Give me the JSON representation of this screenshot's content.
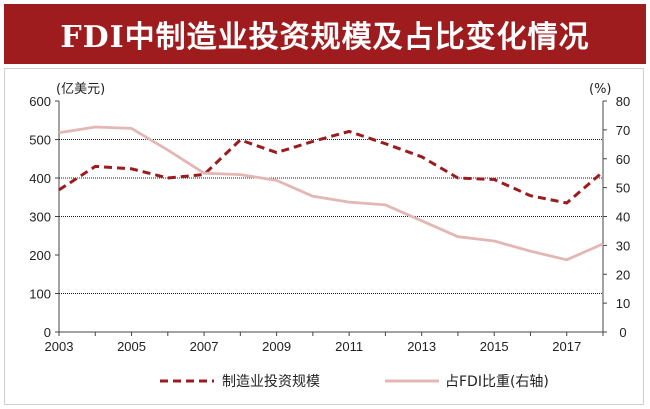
{
  "title": "FDI中制造业投资规模及占比变化情况",
  "chart_data": {
    "type": "line",
    "x": [
      2003,
      2004,
      2005,
      2006,
      2007,
      2008,
      2009,
      2010,
      2011,
      2012,
      2013,
      2014,
      2015,
      2016,
      2017,
      2018
    ],
    "xticks": [
      "2003",
      "2005",
      "2007",
      "2009",
      "2011",
      "2013",
      "2015",
      "2017"
    ],
    "left_axis": {
      "unit": "(亿美元)",
      "ylim": [
        0,
        600
      ],
      "ticks": [
        "0",
        "100",
        "200",
        "300",
        "400",
        "500",
        "600"
      ]
    },
    "right_axis": {
      "unit": "(%)",
      "ylim": [
        0,
        80
      ],
      "ticks": [
        "0",
        "10",
        "20",
        "30",
        "40",
        "50",
        "60",
        "70",
        "80"
      ]
    },
    "gridlines": [
      100,
      300,
      400,
      500
    ],
    "series": [
      {
        "name": "制造业投资规模",
        "axis": "left",
        "color": "#9b1c1f",
        "style": "dashed",
        "values": [
          369,
          430,
          424,
          400,
          409,
          499,
          466,
          495,
          521,
          489,
          455,
          400,
          396,
          354,
          335,
          416
        ]
      },
      {
        "name": "占FDI比重(右轴)",
        "axis": "right",
        "color": "#e2b7b5",
        "style": "solid",
        "values": [
          69,
          71,
          70.5,
          63,
          55,
          54.5,
          52.5,
          47,
          45,
          44,
          38.5,
          33,
          31.5,
          28,
          25,
          30.5
        ]
      }
    ],
    "legend_position": "bottom"
  }
}
